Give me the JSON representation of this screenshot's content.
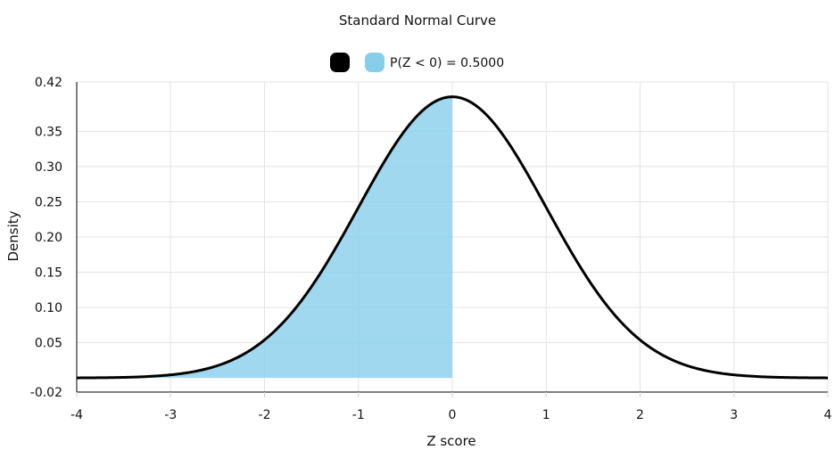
{
  "chart_data": {
    "type": "area",
    "title": "Standard Normal Curve",
    "xlabel": "Z score",
    "ylabel": "Density",
    "xlim": [
      -4,
      4
    ],
    "ylim": [
      -0.02,
      0.42
    ],
    "x_ticks": [
      "-4",
      "-3",
      "-2",
      "-1",
      "0",
      "1",
      "2",
      "3",
      "4"
    ],
    "y_ticks": [
      "-0.02",
      "0.05",
      "0.10",
      "0.15",
      "0.20",
      "0.25",
      "0.30",
      "0.35",
      "0.42"
    ],
    "y_tick_values": [
      -0.02,
      0.05,
      0.1,
      0.15,
      0.2,
      0.25,
      0.3,
      0.35,
      0.42
    ],
    "grid": true,
    "legend_position": "top-center",
    "series": [
      {
        "name": "",
        "kind": "line",
        "color": "#000000",
        "function": "standard-normal-pdf",
        "x_range": [
          -4,
          4
        ]
      },
      {
        "name": "P(Z < 0) = 0.5000",
        "kind": "shaded-area",
        "color": "#87CEEB",
        "function": "standard-normal-pdf",
        "x_range": [
          -4,
          0
        ]
      }
    ]
  }
}
